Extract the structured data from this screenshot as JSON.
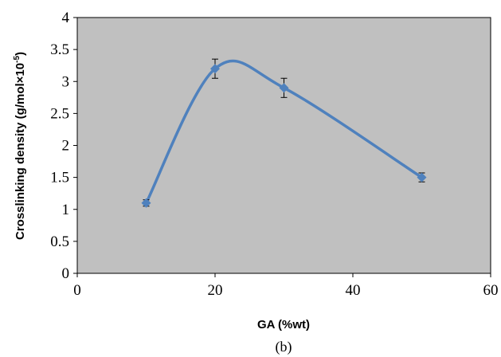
{
  "chart_data": {
    "type": "line",
    "smooth": true,
    "x": [
      10,
      20,
      30,
      50
    ],
    "y": [
      1.1,
      3.2,
      2.9,
      1.5
    ],
    "error_bars": [
      0.05,
      0.15,
      0.15,
      0.07
    ],
    "xlim": [
      0,
      60
    ],
    "ylim": [
      0,
      4
    ],
    "x_ticks": [
      0,
      20,
      40,
      60
    ],
    "y_ticks": [
      0,
      0.5,
      1,
      1.5,
      2,
      2.5,
      3,
      3.5,
      4
    ],
    "x_tick_labels": [
      "0",
      "20",
      "40",
      "60"
    ],
    "y_tick_labels": [
      "0",
      "0.5",
      "1",
      "1.5",
      "2",
      "2.5",
      "3",
      "3.5",
      "4"
    ],
    "xlabel": "GA (%wt)",
    "ylabel_text": "Crosslinking density (g/mol×10",
    "ylabel_sup": "-5",
    "ylabel_close": ")",
    "caption": "(b)",
    "grid": false,
    "plot_background": "#c0c0c0",
    "series_color": "#4f81bd"
  }
}
